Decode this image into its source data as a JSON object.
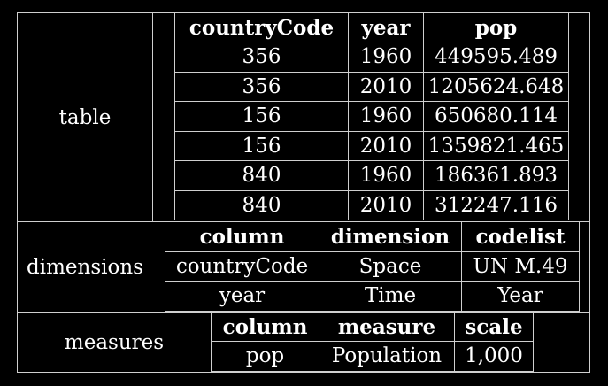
{
  "sections": {
    "table": {
      "label": "table"
    },
    "dimensions": {
      "label": "dimensions"
    },
    "measures": {
      "label": "measures"
    }
  },
  "table": {
    "headers": [
      "countryCode",
      "year",
      "pop"
    ],
    "rows": [
      [
        "356",
        "1960",
        "449595.489"
      ],
      [
        "356",
        "2010",
        "1205624.648"
      ],
      [
        "156",
        "1960",
        "650680.114"
      ],
      [
        "156",
        "2010",
        "1359821.465"
      ],
      [
        "840",
        "1960",
        "186361.893"
      ],
      [
        "840",
        "2010",
        "312247.116"
      ]
    ]
  },
  "dimensions": {
    "headers": [
      "column",
      "dimension",
      "codelist"
    ],
    "rows": [
      [
        "countryCode",
        "Space",
        "UN M.49"
      ],
      [
        "year",
        "Time",
        "Year"
      ]
    ]
  },
  "measures": {
    "headers": [
      "column",
      "measure",
      "scale"
    ],
    "rows": [
      [
        "pop",
        "Population",
        "1,000"
      ]
    ]
  }
}
